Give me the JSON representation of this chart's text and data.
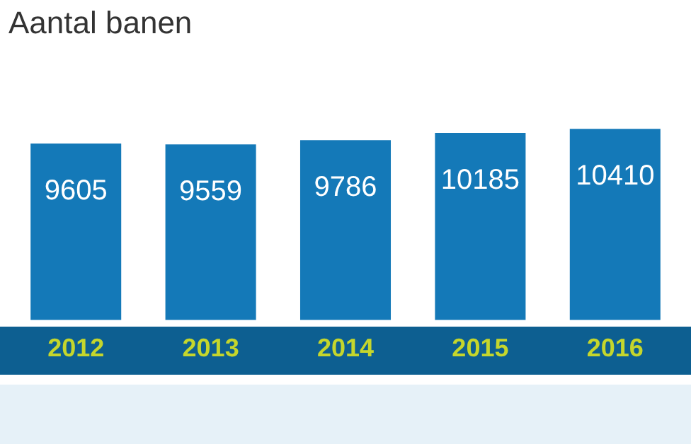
{
  "chart_data": {
    "type": "bar",
    "title": "Aantal banen",
    "categories": [
      "2012",
      "2013",
      "2014",
      "2015",
      "2016"
    ],
    "values": [
      9605,
      9559,
      9786,
      10185,
      10410
    ],
    "color": "#1479b8",
    "data_labels": true,
    "grid": false,
    "legend": false,
    "tick_labels": "x"
  }
}
